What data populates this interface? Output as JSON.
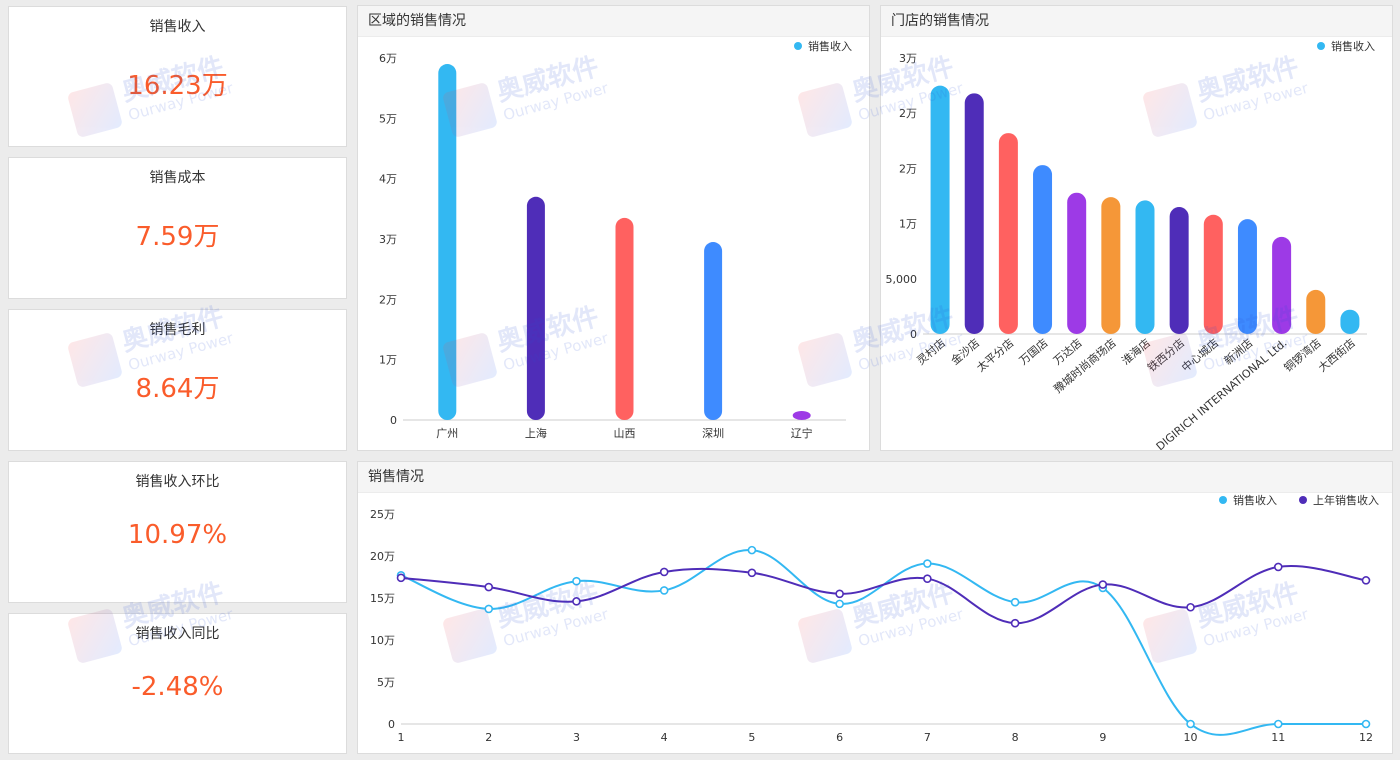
{
  "kpis": [
    {
      "title": "销售收入",
      "value": "16.23万"
    },
    {
      "title": "销售成本",
      "value": "7.59万"
    },
    {
      "title": "销售毛利",
      "value": "8.64万"
    },
    {
      "title": "销售收入环比",
      "value": "10.97%"
    },
    {
      "title": "销售收入同比",
      "value": "-2.48%"
    }
  ],
  "watermark": {
    "cn": "奥威软件",
    "en": "Ourway Power"
  },
  "colors": {
    "accent_value": "#fa5c2b",
    "palette": [
      "#33b8f2",
      "#4f2db8",
      "#ff6160",
      "#3e8bff",
      "#9d3ae6",
      "#f59738"
    ]
  },
  "chart_data": [
    {
      "id": "region",
      "title": "区域的销售情况",
      "type": "bar",
      "legend": "销售收入",
      "categories": [
        "广州",
        "上海",
        "山西",
        "深圳",
        "辽宁"
      ],
      "values": [
        59000,
        37000,
        33500,
        29500,
        1500
      ],
      "ylim": [
        0,
        60000
      ],
      "yticks": [
        0,
        10000,
        20000,
        30000,
        40000,
        50000,
        60000
      ],
      "yticklabels": [
        "0",
        "1万",
        "2万",
        "3万",
        "4万",
        "5万",
        "6万"
      ],
      "colors": [
        "#33b8f2",
        "#4f2db8",
        "#ff6160",
        "#3e8bff",
        "#9d3ae6"
      ]
    },
    {
      "id": "store",
      "title": "门店的销售情况",
      "type": "bar",
      "legend": "销售收入",
      "categories": [
        "灵村店",
        "金沙店",
        "太平分店",
        "万国店",
        "万达店",
        "豫城时尚商场店",
        "淮海店",
        "铁西分店",
        "中心城店",
        "新洲店",
        "DIGIRICH INTERNATIONAL Ltd.",
        "铜锣湾店",
        "大西街店"
      ],
      "values": [
        22500,
        21800,
        18200,
        15300,
        12800,
        12400,
        12100,
        11500,
        10800,
        10400,
        8800,
        4000,
        2200
      ],
      "ylim": [
        0,
        25000
      ],
      "yticks": [
        0,
        5000,
        10000,
        15000,
        20000,
        25000
      ],
      "yticklabels": [
        "0",
        "5,000",
        "1万",
        "2万",
        "2万",
        "3万"
      ],
      "colors": [
        "#33b8f2",
        "#4f2db8",
        "#ff6160",
        "#3e8bff",
        "#9d3ae6",
        "#f59738"
      ]
    },
    {
      "id": "trend",
      "title": "销售情况",
      "type": "line",
      "x": [
        "1",
        "2",
        "3",
        "4",
        "5",
        "6",
        "7",
        "8",
        "9",
        "10",
        "11",
        "12"
      ],
      "ylim": [
        0,
        250000
      ],
      "yticks": [
        0,
        50000,
        100000,
        150000,
        200000,
        250000
      ],
      "yticklabels": [
        "0",
        "5万",
        "10万",
        "15万",
        "20万",
        "25万"
      ],
      "series": [
        {
          "name": "销售收入",
          "color": "#33b8f2",
          "values": [
            177000,
            137000,
            170000,
            159000,
            207000,
            143000,
            191000,
            145000,
            162000,
            0,
            0,
            0
          ]
        },
        {
          "name": "上年销售收入",
          "color": "#4f2db8",
          "values": [
            174000,
            163000,
            146000,
            181000,
            180000,
            155000,
            173000,
            120000,
            166000,
            139000,
            187000,
            171000
          ]
        }
      ]
    }
  ]
}
